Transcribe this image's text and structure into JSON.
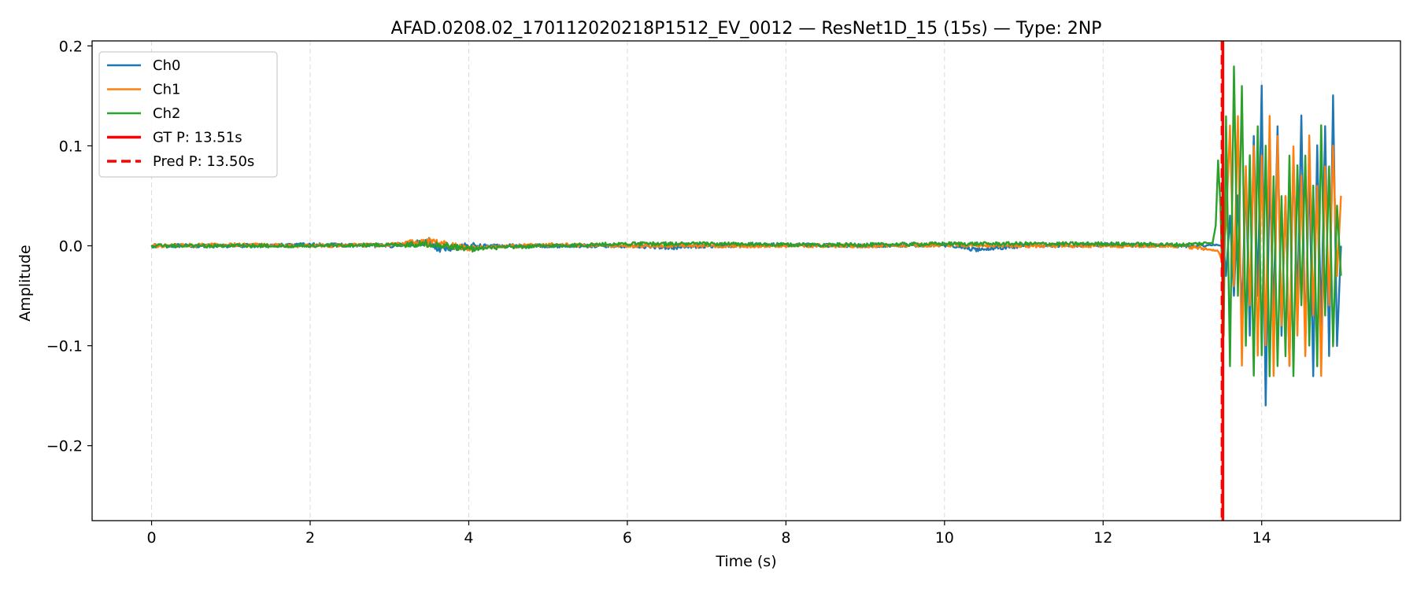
{
  "chart_data": {
    "type": "line",
    "title": "AFAD.0208.02_170112020218P1512_EV_0012 — ResNet1D_15 (15s) — Type: 2NP",
    "xlabel": "Time (s)",
    "ylabel": "Amplitude",
    "xlim": [
      -0.75,
      15.75
    ],
    "ylim": [
      -0.275,
      0.205
    ],
    "xticks": [
      0,
      2,
      4,
      6,
      8,
      10,
      12,
      14
    ],
    "yticks": [
      -0.2,
      -0.1,
      0.0,
      0.1,
      0.2
    ],
    "ytick_labels": [
      "−0.2",
      "−0.1",
      "0.0",
      "0.1",
      "0.2"
    ],
    "grid": "vertical dashed",
    "legend_position": "top-left",
    "series": [
      {
        "name": "Ch0",
        "color": "#1f77b4",
        "x": [
          0,
          1,
          2,
          3,
          3.4,
          3.5,
          3.6,
          4,
          5,
          6,
          6.6,
          7,
          8,
          9,
          10,
          10.4,
          11,
          12,
          13,
          13.45,
          13.52,
          13.55,
          13.6,
          13.65,
          13.7,
          13.75,
          13.8,
          13.85,
          13.9,
          13.95,
          14.0,
          14.05,
          14.1,
          14.15,
          14.2,
          14.25,
          14.3,
          14.35,
          14.4,
          14.45,
          14.5,
          14.55,
          14.6,
          14.65,
          14.7,
          14.75,
          14.8,
          14.85,
          14.9,
          14.95,
          15.0
        ],
        "y": [
          0.0,
          0.0,
          0.001,
          0.0,
          0.003,
          0.005,
          -0.004,
          0.0,
          0.0,
          0.0,
          -0.002,
          0.0,
          0.001,
          0.0,
          0.001,
          -0.004,
          0.0,
          0.001,
          0.0,
          0.001,
          0.0,
          -0.03,
          0.03,
          -0.05,
          0.05,
          -0.07,
          0.07,
          -0.09,
          0.11,
          -0.05,
          0.16,
          -0.16,
          0.07,
          -0.07,
          0.12,
          -0.09,
          0.05,
          -0.12,
          0.09,
          -0.06,
          0.13,
          -0.1,
          0.08,
          -0.13,
          0.1,
          -0.08,
          0.12,
          -0.11,
          0.15,
          -0.1,
          0.0
        ]
      },
      {
        "name": "Ch1",
        "color": "#ff7f0e",
        "x": [
          0,
          1,
          2,
          3,
          3.5,
          4,
          5,
          6,
          7,
          8,
          9,
          10,
          11,
          12,
          13,
          13.45,
          13.5,
          13.55,
          13.6,
          13.65,
          13.7,
          13.75,
          13.8,
          13.85,
          13.9,
          13.95,
          14.0,
          14.05,
          14.1,
          14.15,
          14.2,
          14.25,
          14.3,
          14.35,
          14.4,
          14.45,
          14.5,
          14.55,
          14.6,
          14.65,
          14.7,
          14.75,
          14.8,
          14.85,
          14.9,
          14.95,
          15.0
        ],
        "y": [
          0.0,
          0.001,
          0.0,
          0.001,
          0.004,
          -0.002,
          0.001,
          0.0,
          0.0,
          0.0,
          0.0,
          0.001,
          0.0,
          0.0,
          0.0,
          -0.005,
          -0.015,
          0.02,
          0.12,
          -0.04,
          0.13,
          -0.12,
          0.08,
          -0.06,
          0.1,
          -0.11,
          0.09,
          -0.1,
          0.13,
          -0.13,
          0.11,
          -0.08,
          0.05,
          -0.12,
          0.1,
          -0.09,
          0.07,
          -0.11,
          0.11,
          -0.07,
          0.06,
          -0.13,
          0.08,
          -0.06,
          0.1,
          -0.03,
          0.05
        ]
      },
      {
        "name": "Ch2",
        "color": "#2ca02c",
        "x": [
          0,
          1,
          2,
          3,
          3.5,
          4,
          5,
          6,
          7,
          8,
          9,
          10,
          11,
          12,
          13,
          13.38,
          13.42,
          13.45,
          13.48,
          13.52,
          13.55,
          13.6,
          13.65,
          13.7,
          13.75,
          13.8,
          13.85,
          13.9,
          13.95,
          14.0,
          14.05,
          14.1,
          14.15,
          14.2,
          14.25,
          14.3,
          14.35,
          14.4,
          14.45,
          14.5,
          14.55,
          14.6,
          14.65,
          14.7,
          14.75,
          14.8,
          14.85,
          14.9,
          14.95,
          15.0
        ],
        "y": [
          0.0,
          0.0,
          0.0,
          0.001,
          0.002,
          -0.003,
          0.0,
          0.002,
          0.002,
          0.001,
          0.001,
          0.002,
          0.002,
          0.002,
          0.001,
          0.003,
          0.02,
          0.085,
          0.04,
          -0.09,
          0.13,
          -0.12,
          0.18,
          -0.05,
          0.16,
          -0.1,
          0.09,
          -0.13,
          0.12,
          -0.11,
          0.1,
          -0.13,
          0.07,
          -0.12,
          0.05,
          -0.11,
          0.09,
          -0.13,
          0.08,
          -0.06,
          0.09,
          -0.1,
          0.06,
          -0.12,
          0.12,
          -0.07,
          0.08,
          -0.1,
          0.04,
          -0.03
        ]
      }
    ],
    "vlines": [
      {
        "name": "GT P: 13.51s",
        "x": 13.51,
        "color": "#ff0000",
        "style": "solid"
      },
      {
        "name": "Pred P: 13.50s",
        "x": 13.5,
        "color": "#ff0000",
        "style": "dashed"
      }
    ]
  }
}
